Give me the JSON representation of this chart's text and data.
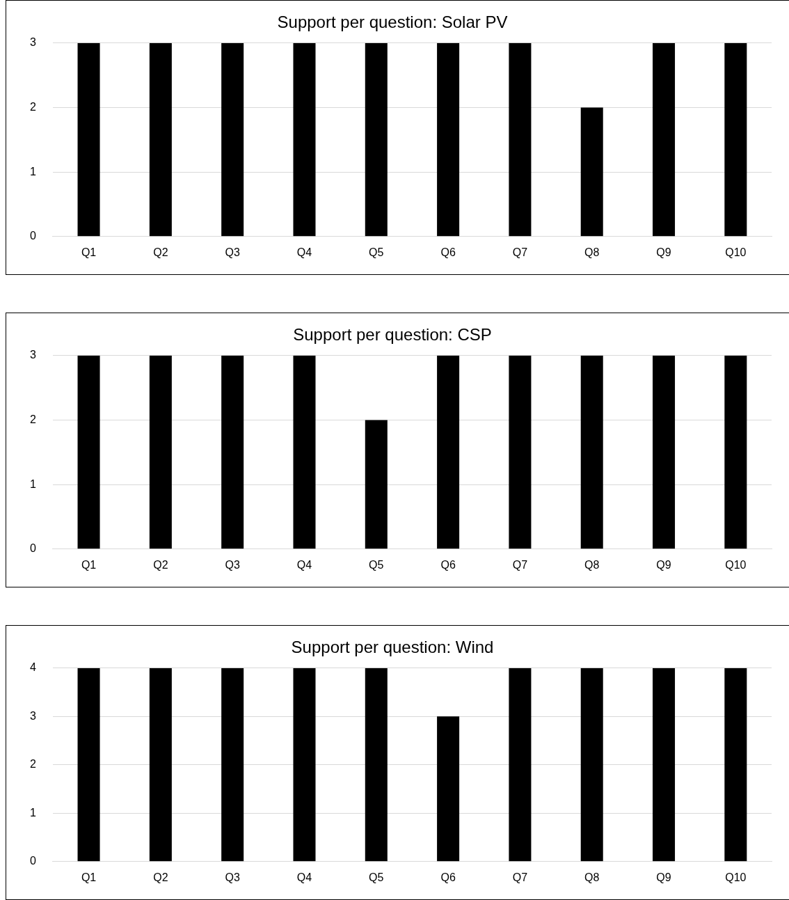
{
  "chart_data": [
    {
      "type": "bar",
      "title": "Support per question: Solar PV",
      "categories": [
        "Q1",
        "Q2",
        "Q3",
        "Q4",
        "Q5",
        "Q6",
        "Q7",
        "Q8",
        "Q9",
        "Q10"
      ],
      "values": [
        3,
        3,
        3,
        3,
        3,
        3,
        3,
        2,
        3,
        3
      ],
      "color": "#000000",
      "ylim": [
        0,
        3
      ],
      "yticks": [
        0,
        1,
        2,
        3
      ],
      "grid": "y",
      "legend": false
    },
    {
      "type": "bar",
      "title": "Support per question: CSP",
      "categories": [
        "Q1",
        "Q2",
        "Q3",
        "Q4",
        "Q5",
        "Q6",
        "Q7",
        "Q8",
        "Q9",
        "Q10"
      ],
      "values": [
        3,
        3,
        3,
        3,
        2,
        3,
        3,
        3,
        3,
        3
      ],
      "color": "#000000",
      "ylim": [
        0,
        3
      ],
      "yticks": [
        0,
        1,
        2,
        3
      ],
      "grid": "y",
      "legend": false
    },
    {
      "type": "bar",
      "title": "Support per question: Wind",
      "categories": [
        "Q1",
        "Q2",
        "Q3",
        "Q4",
        "Q5",
        "Q6",
        "Q7",
        "Q8",
        "Q9",
        "Q10"
      ],
      "values": [
        4,
        4,
        4,
        4,
        4,
        3,
        4,
        4,
        4,
        4
      ],
      "color": "#000000",
      "ylim": [
        0,
        4
      ],
      "yticks": [
        0,
        1,
        2,
        3,
        4
      ],
      "grid": "y",
      "legend": false
    }
  ]
}
